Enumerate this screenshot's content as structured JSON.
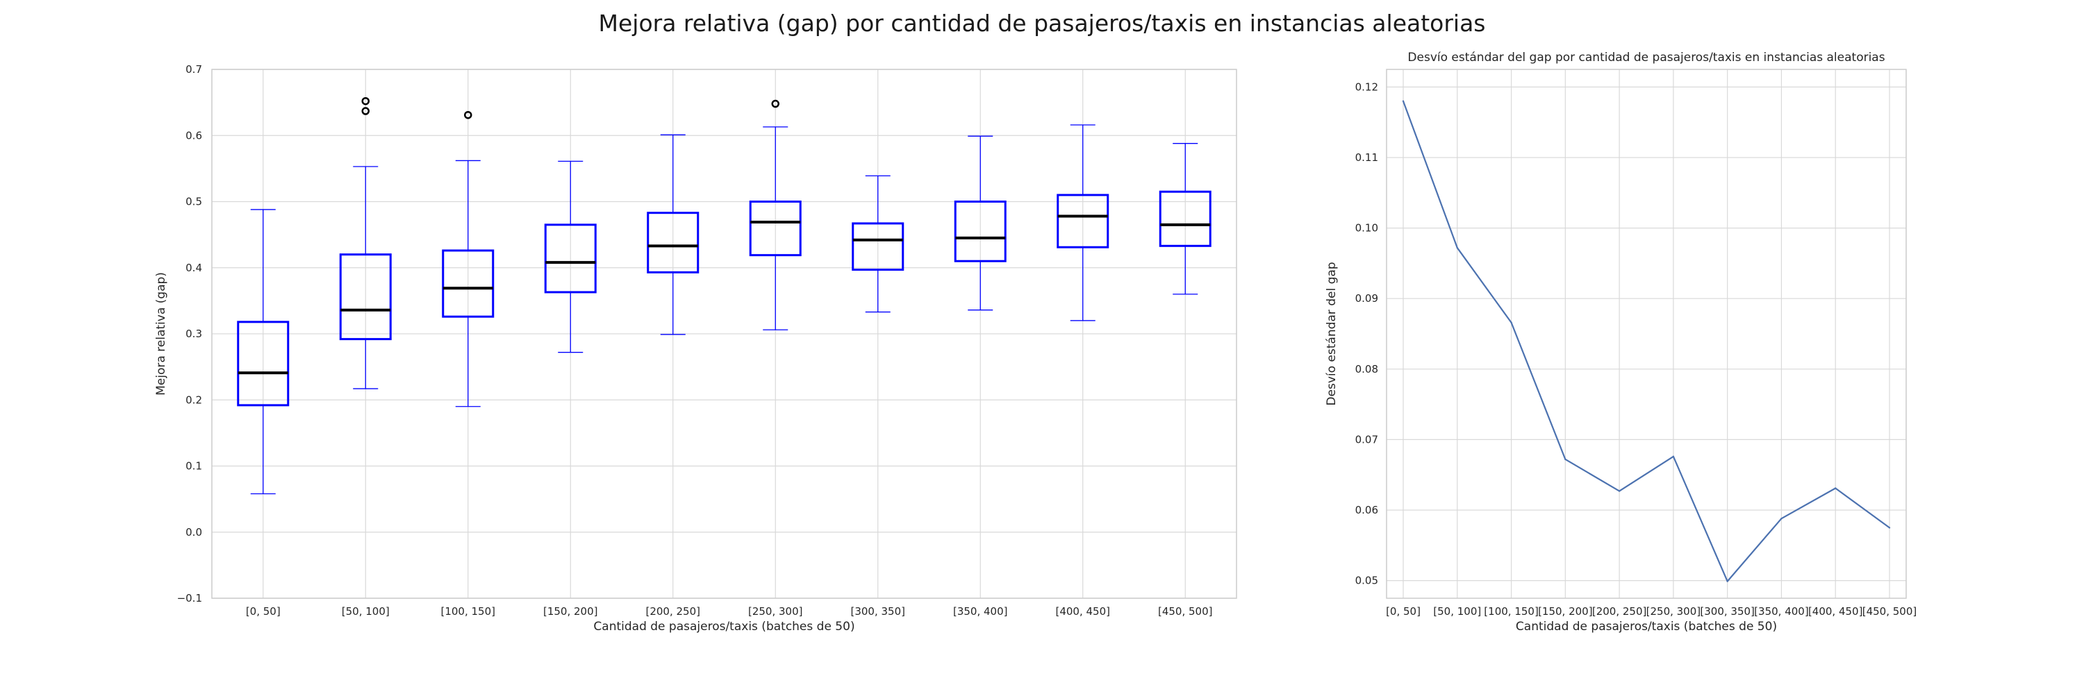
{
  "figure": {
    "suptitle": "Mejora relativa (gap) por cantidad de pasajeros/taxis en instancias aleatorias"
  },
  "chart_data": [
    {
      "type": "box",
      "title": "",
      "xlabel": "Cantidad de pasajeros/taxis (batches de 50)",
      "ylabel": "Mejora relativa (gap)",
      "ylim": [
        -0.1,
        0.7
      ],
      "yticks": [
        "−0.1",
        "0.0",
        "0.1",
        "0.2",
        "0.3",
        "0.4",
        "0.5",
        "0.6",
        "0.7"
      ],
      "ytick_values": [
        -0.1,
        0.0,
        0.1,
        0.2,
        0.3,
        0.4,
        0.5,
        0.6,
        0.7
      ],
      "grid": true,
      "box_color": "#0000ff",
      "median_color": "#000000",
      "categories": [
        "[0, 50]",
        "[50, 100]",
        "[100, 150]",
        "[150, 200]",
        "[200, 250]",
        "[250, 300]",
        "[300, 350]",
        "[350, 400]",
        "[400, 450]",
        "[450, 500]"
      ],
      "boxes": [
        {
          "whislo": 0.058,
          "q1": 0.192,
          "med": 0.241,
          "q3": 0.318,
          "whishi": 0.488,
          "fliers": []
        },
        {
          "whislo": 0.217,
          "q1": 0.292,
          "med": 0.336,
          "q3": 0.42,
          "whishi": 0.553,
          "fliers": [
            0.637,
            0.652
          ]
        },
        {
          "whislo": 0.19,
          "q1": 0.326,
          "med": 0.369,
          "q3": 0.426,
          "whishi": 0.562,
          "fliers": [
            0.631
          ]
        },
        {
          "whislo": 0.272,
          "q1": 0.363,
          "med": 0.408,
          "q3": 0.465,
          "whishi": 0.561,
          "fliers": []
        },
        {
          "whislo": 0.299,
          "q1": 0.393,
          "med": 0.433,
          "q3": 0.483,
          "whishi": 0.601,
          "fliers": []
        },
        {
          "whislo": 0.306,
          "q1": 0.419,
          "med": 0.469,
          "q3": 0.5,
          "whishi": 0.613,
          "fliers": [
            0.648
          ]
        },
        {
          "whislo": 0.333,
          "q1": 0.397,
          "med": 0.442,
          "q3": 0.467,
          "whishi": 0.539,
          "fliers": []
        },
        {
          "whislo": 0.336,
          "q1": 0.41,
          "med": 0.445,
          "q3": 0.5,
          "whishi": 0.599,
          "fliers": []
        },
        {
          "whislo": 0.32,
          "q1": 0.431,
          "med": 0.478,
          "q3": 0.51,
          "whishi": 0.616,
          "fliers": []
        },
        {
          "whislo": 0.36,
          "q1": 0.433,
          "med": 0.465,
          "q3": 0.515,
          "whishi": 0.588,
          "fliers": []
        }
      ]
    },
    {
      "type": "line",
      "title": "Desvío estándar del gap por cantidad de pasajeros/taxis en instancias aleatorias",
      "xlabel": "Cantidad de pasajeros/taxis (batches de 50)",
      "ylabel": "Desvío estándar del gap",
      "ylim": [
        0.0475,
        0.1225
      ],
      "yticks": [
        "0.05",
        "0.06",
        "0.07",
        "0.08",
        "0.09",
        "0.10",
        "0.11",
        "0.12"
      ],
      "ytick_values": [
        0.05,
        0.06,
        0.07,
        0.08,
        0.09,
        0.1,
        0.11,
        0.12
      ],
      "grid": true,
      "line_color": "#4c72b0",
      "categories": [
        "[0, 50]",
        "[50, 100]",
        "[100, 150]",
        "[150, 200]",
        "[200, 250]",
        "[250, 300]",
        "[300, 350]",
        "[350, 400]",
        "[400, 450]",
        "[450, 500]"
      ],
      "values": [
        0.118,
        0.0972,
        0.0866,
        0.0672,
        0.0627,
        0.0676,
        0.0499,
        0.0588,
        0.0631,
        0.0575
      ]
    }
  ]
}
